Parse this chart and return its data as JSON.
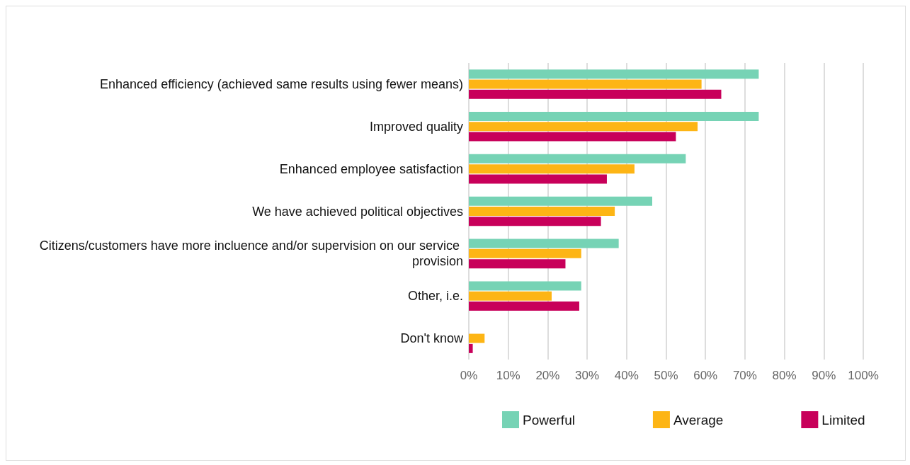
{
  "chart_data": {
    "type": "bar",
    "orientation": "horizontal",
    "categories": [
      "Enhanced efficiency (achieved same results using fewer means)",
      "Improved quality",
      "Enhanced employee satisfaction",
      "We have achieved political objectives",
      "Citizens/customers have more incluence and/or supervision on our service provision",
      "Other, i.e.",
      "Don't know"
    ],
    "series": [
      {
        "name": "Powerful",
        "color": "#76d3b5",
        "values": [
          73.5,
          73.5,
          55,
          46.5,
          38,
          28.5,
          0
        ]
      },
      {
        "name": "Average",
        "color": "#fdb515",
        "values": [
          59,
          58,
          42,
          37,
          28.5,
          21,
          4
        ]
      },
      {
        "name": "Limited",
        "color": "#c8005a",
        "values": [
          64,
          52.5,
          35,
          33.5,
          24.5,
          28,
          1
        ]
      }
    ],
    "xlim": [
      0,
      100
    ],
    "xticks": [
      {
        "value": 0,
        "label": "0%"
      },
      {
        "value": 10,
        "label": "10%"
      },
      {
        "value": 20,
        "label": "20%"
      },
      {
        "value": 30,
        "label": "30%"
      },
      {
        "value": 40,
        "label": "40%"
      },
      {
        "value": 50,
        "label": "50%"
      },
      {
        "value": 60,
        "label": "60%"
      },
      {
        "value": 70,
        "label": "70%"
      },
      {
        "value": 80,
        "label": "80%"
      },
      {
        "value": 90,
        "label": "90%"
      },
      {
        "value": 100,
        "label": "100%"
      }
    ],
    "grid": "x",
    "legend": "bottom"
  }
}
